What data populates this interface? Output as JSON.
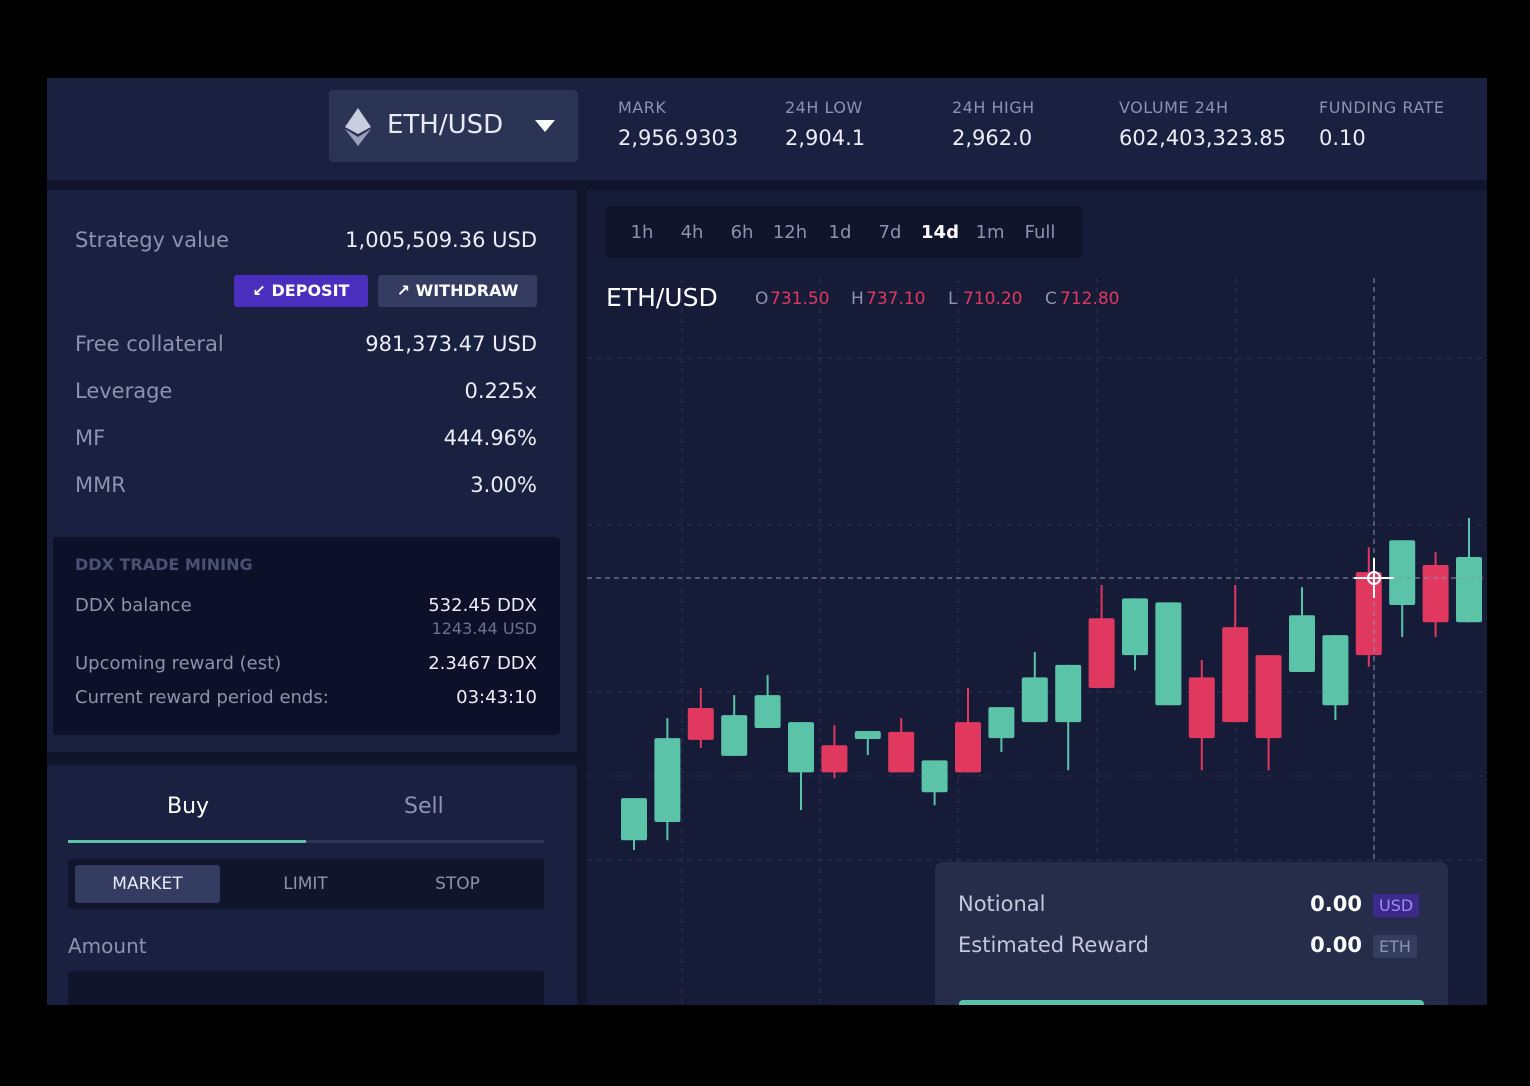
{
  "header": {
    "pair": "ETH/USD",
    "stats": [
      {
        "label": "MARK",
        "value": "2,956.9303"
      },
      {
        "label": "24H LOW",
        "value": "2,904.1"
      },
      {
        "label": "24H HIGH",
        "value": "2,962.0"
      },
      {
        "label": "VOLUME 24H",
        "value": "602,403,323.85"
      },
      {
        "label": "FUNDING RATE",
        "value": "0.10"
      }
    ]
  },
  "account": {
    "strategy": {
      "label": "Strategy value",
      "value": "1,005,509.36 USD"
    },
    "buttons": [
      "DEPOSIT",
      "WITHDRAW"
    ],
    "rows": [
      {
        "label": "Free collateral",
        "value": "981,373.47 USD"
      },
      {
        "label": "Leverage",
        "value": "0.225x"
      },
      {
        "label": "MF",
        "value": "444.96%"
      },
      {
        "label": "MMR",
        "value": "3.00%"
      }
    ]
  },
  "mining": {
    "title": "DDX TRADE MINING",
    "balance_label": "DDX balance",
    "balance": "532.45 DDX",
    "balance_usd": "1243.44 USD",
    "reward_label": "Upcoming reward (est)",
    "reward": "2.3467 DDX",
    "period_label": "Current reward period ends:",
    "period": "03:43:10"
  },
  "order": {
    "sides": [
      "Buy",
      "Sell"
    ],
    "types": [
      "MARKET",
      "LIMIT",
      "STOP"
    ],
    "amount_label": "Amount"
  },
  "chart_data": {
    "type": "candlestick",
    "title": "ETH/USD",
    "intervals": [
      "1h",
      "4h",
      "6h",
      "12h",
      "1d",
      "7d",
      "14d",
      "1m",
      "Full"
    ],
    "active_interval": "14d",
    "readout": {
      "names": [
        "O",
        "H",
        "L",
        "C"
      ],
      "value_labels": [
        "731.50",
        "737.10",
        "710.20",
        "712.80"
      ]
    },
    "open": [
      671.1,
      675.2,
      700.9,
      690.1,
      696.4,
      686.4,
      692.5,
      693.9,
      695.5,
      681.9,
      697.7,
      694.1,
      697.7,
      697.7,
      721.1,
      712.8,
      701.5,
      707.8,
      719.1,
      712.8,
      709.0,
      701.5,
      731.5,
      724.1,
      733.1,
      720.2
    ],
    "high": [
      680.6,
      698.6,
      705.4,
      703.8,
      708.3,
      697.7,
      697.0,
      695.7,
      698.6,
      689.1,
      705.4,
      701.1,
      713.5,
      710.6,
      728.6,
      725.6,
      724.7,
      711.7,
      728.6,
      712.8,
      728.1,
      717.3,
      737.1,
      738.7,
      736.0,
      743.7
    ],
    "low": [
      668.9,
      671.1,
      691.9,
      690.1,
      696.4,
      677.9,
      685.1,
      690.3,
      686.4,
      679.0,
      686.4,
      691.0,
      697.7,
      686.9,
      705.4,
      709.4,
      701.5,
      686.9,
      697.7,
      686.9,
      709.0,
      698.2,
      710.2,
      716.9,
      716.9,
      720.2
    ],
    "close": [
      680.6,
      694.1,
      693.7,
      699.3,
      703.8,
      697.7,
      686.4,
      695.7,
      686.4,
      689.1,
      686.4,
      701.1,
      707.8,
      710.6,
      705.4,
      725.6,
      724.7,
      694.1,
      697.7,
      694.1,
      721.8,
      717.3,
      712.8,
      738.7,
      720.2,
      734.9
    ],
    "up_color": "#5bc4a8",
    "down_color": "#e0385e",
    "grid": true
  },
  "reward_panel": {
    "rows": [
      {
        "label": "Notional",
        "value": "0.00",
        "unit": "USD"
      },
      {
        "label": "Estimated Reward",
        "value": "0.00",
        "unit": "ETH"
      }
    ]
  }
}
